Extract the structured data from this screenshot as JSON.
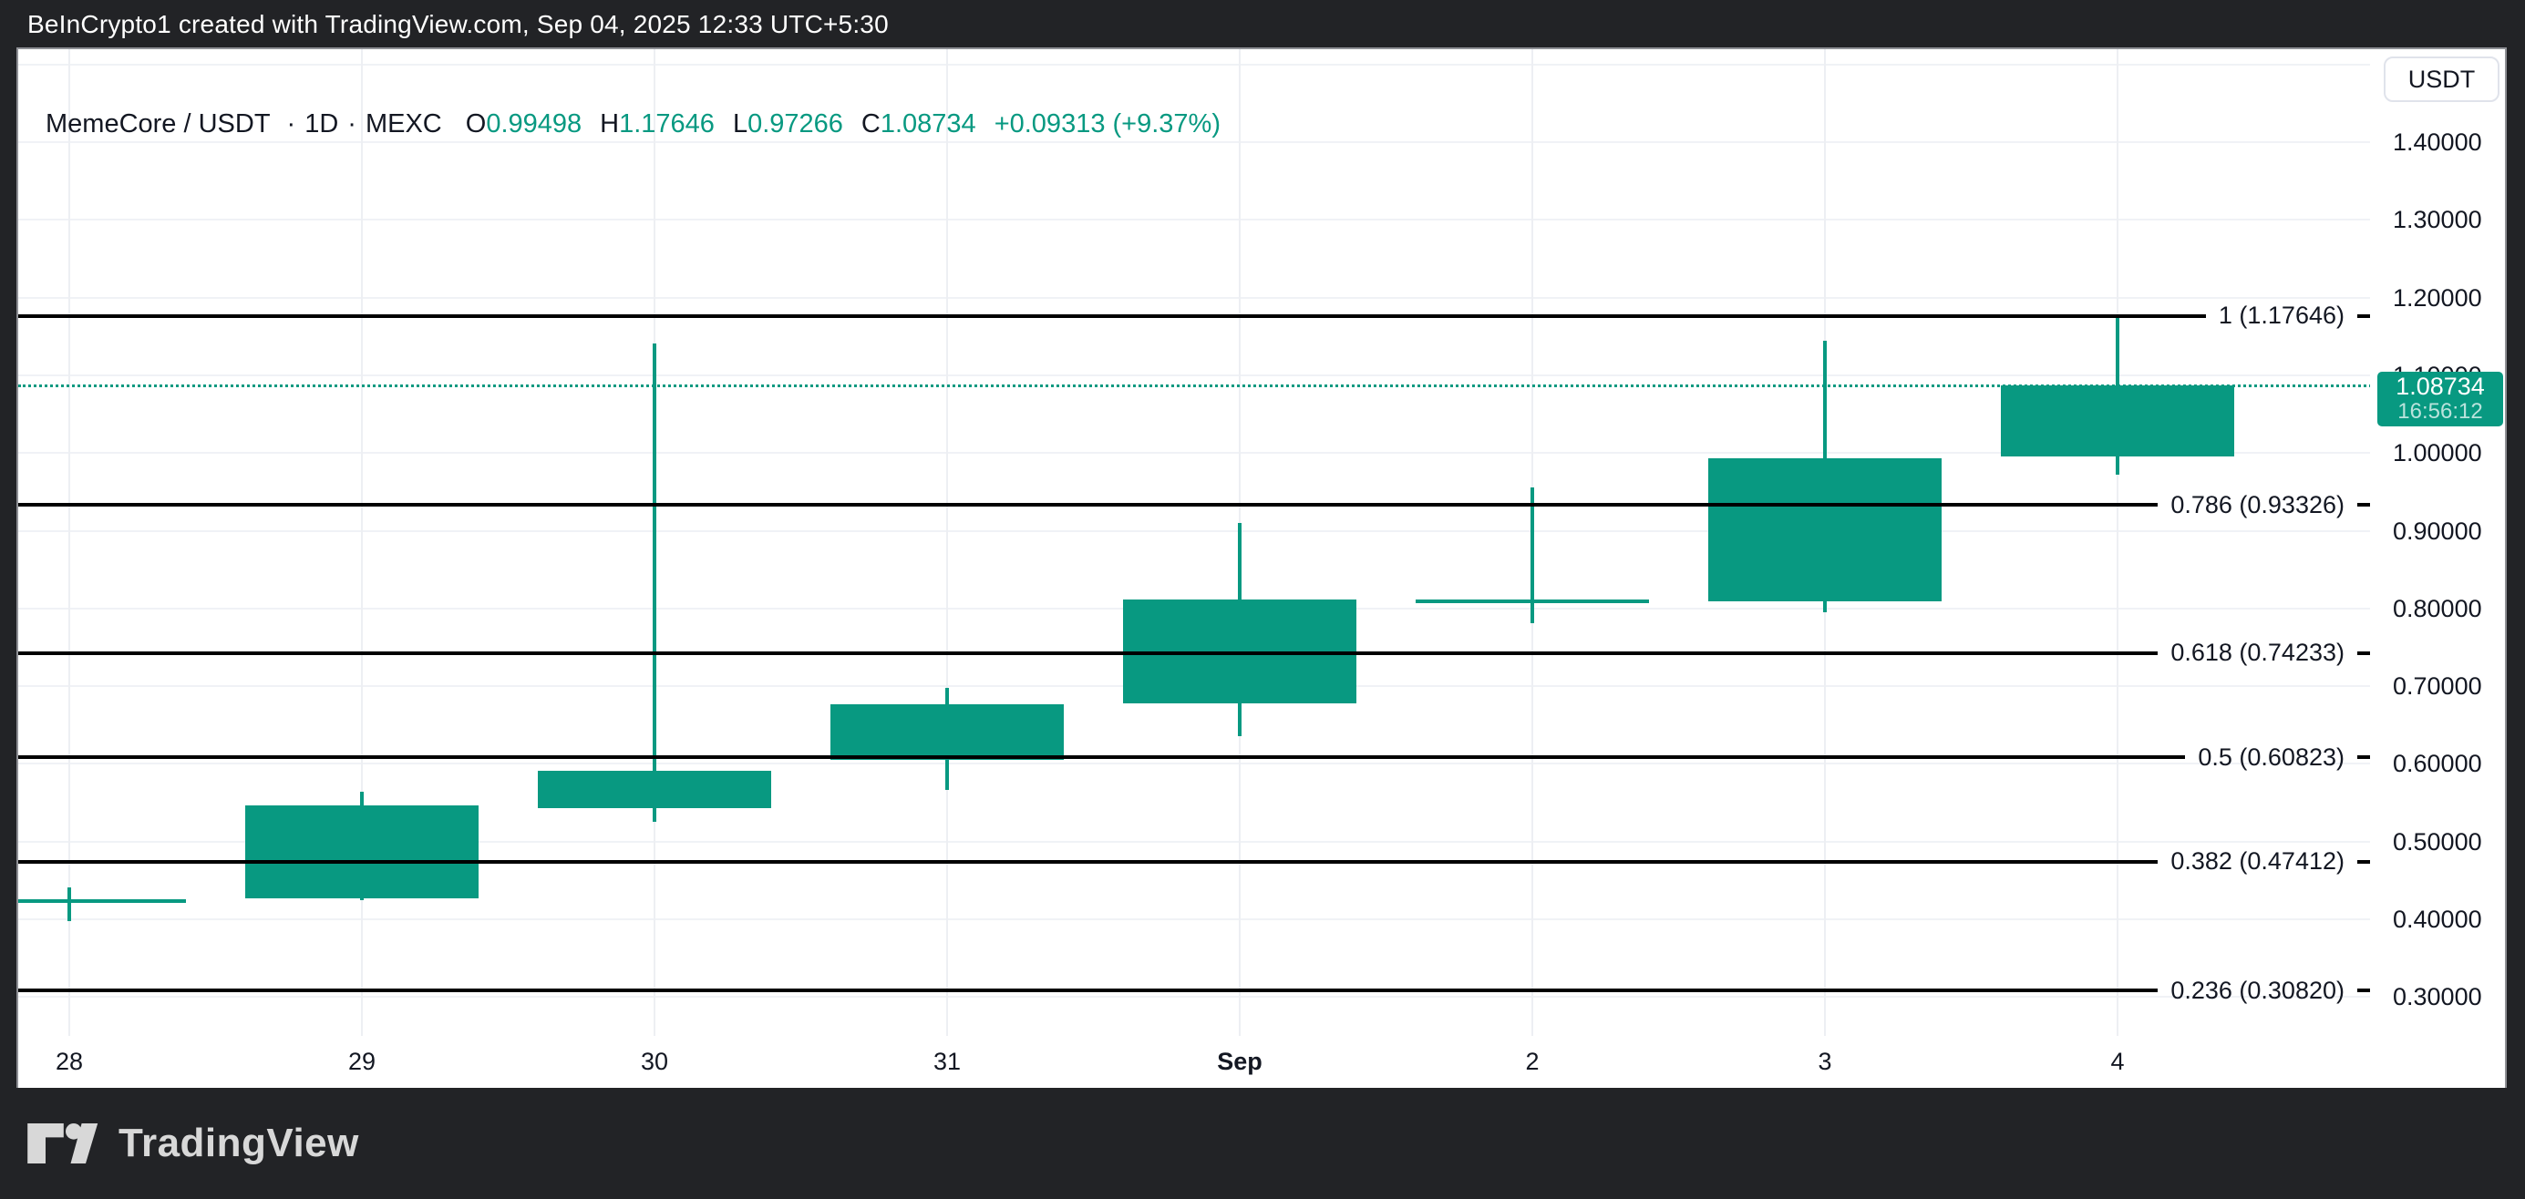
{
  "top_bar": {
    "text": "BeInCrypto1 created with TradingView.com, Sep 04, 2025 12:33 UTC+5:30"
  },
  "header": {
    "symbol": "MemeCore / USDT",
    "separator": "·",
    "interval": "1D",
    "exchange": "MEXC",
    "ohlc": [
      {
        "label": "O",
        "value": "0.99498"
      },
      {
        "label": "H",
        "value": "1.17646"
      },
      {
        "label": "L",
        "value": "0.97266"
      },
      {
        "label": "C",
        "value": "1.08734"
      }
    ],
    "change": "+0.09313 (+9.37%)"
  },
  "toolbar": {
    "currency_button": "USDT"
  },
  "watermark": {
    "brand": "TradingView"
  },
  "colors": {
    "up": "#089981",
    "fib_line": "#000000",
    "grid_horizontal": "#f0f2f6",
    "grid_vertical": "#edeff3",
    "frame_background": "#222326",
    "panel_background": "#ffffff",
    "text": "#131722",
    "badge_background": "#089981",
    "logo_gray": "#d8d8d8",
    "button_border": "#e0e3eb"
  },
  "chart_data": {
    "type": "candlestick",
    "title": "MemeCore / USDT · 1D · MEXC",
    "legend_position": "none",
    "grid": true,
    "up_color": "#089981",
    "x_categories": [
      "Aug 28",
      "Aug 29",
      "Aug 30",
      "Aug 31",
      "Sep 1",
      "Sep 2",
      "Sep 3",
      "Sep 4"
    ],
    "candles": [
      {
        "date": "Aug 28",
        "label": "28",
        "bold": false,
        "open": 0.424,
        "high": 0.441,
        "low": 0.398,
        "close": 0.426
      },
      {
        "date": "Aug 29",
        "label": "29",
        "bold": false,
        "open": 0.427,
        "high": 0.564,
        "low": 0.425,
        "close": 0.547
      },
      {
        "date": "Aug 30",
        "label": "30",
        "bold": false,
        "open": 0.543,
        "high": 1.141,
        "low": 0.526,
        "close": 0.591
      },
      {
        "date": "Aug 31",
        "label": "31",
        "bold": false,
        "open": 0.605,
        "high": 0.698,
        "low": 0.566,
        "close": 0.677
      },
      {
        "date": "Sep 1",
        "label": "Sep",
        "bold": true,
        "open": 0.678,
        "high": 0.91,
        "low": 0.636,
        "close": 0.811
      },
      {
        "date": "Sep 2",
        "label": "2",
        "bold": false,
        "open": 0.809,
        "high": 0.956,
        "low": 0.781,
        "close": 0.811
      },
      {
        "date": "Sep 3",
        "label": "3",
        "bold": false,
        "open": 0.809,
        "high": 1.145,
        "low": 0.795,
        "close": 0.993
      },
      {
        "date": "Sep 4",
        "label": "4",
        "bold": false,
        "open": 0.99498,
        "high": 1.17646,
        "low": 0.97266,
        "close": 1.08734
      }
    ],
    "fib_levels": [
      {
        "ratio": "1",
        "price": "1.17646"
      },
      {
        "ratio": "0.786",
        "price": "0.93326"
      },
      {
        "ratio": "0.618",
        "price": "0.74233"
      },
      {
        "ratio": "0.5",
        "price": "0.60823"
      },
      {
        "ratio": "0.382",
        "price": "0.47412"
      },
      {
        "ratio": "0.236",
        "price": "0.30820"
      }
    ],
    "y_tick_labels": [
      "1.40000",
      "1.30000",
      "1.20000",
      "1.10000",
      "1.00000",
      "0.90000",
      "0.80000",
      "0.70000",
      "0.60000",
      "0.50000",
      "0.40000",
      "0.30000"
    ],
    "y_gridline_prices": [
      1.5,
      1.4,
      1.3,
      1.2,
      1.1,
      1.0,
      0.9,
      0.8,
      0.7,
      0.6,
      0.5,
      0.4,
      0.3
    ],
    "ylabel": "USDT",
    "price_line": {
      "price": "1.08734",
      "countdown": "16:56:12"
    }
  }
}
